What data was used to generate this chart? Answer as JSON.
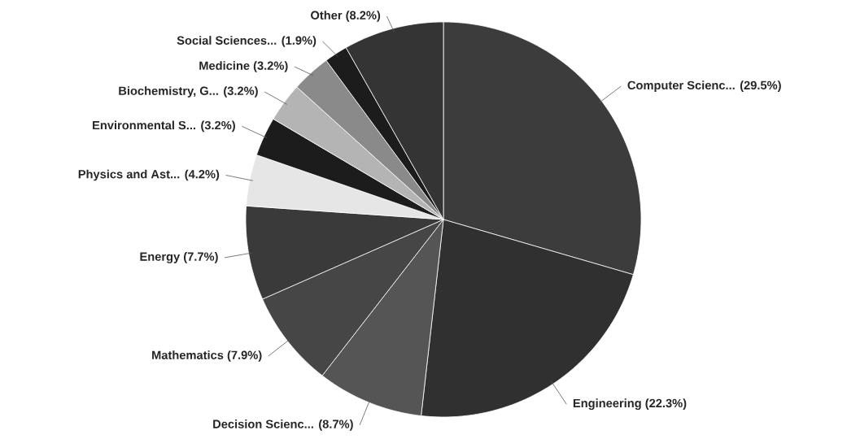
{
  "chart_data": {
    "type": "pie",
    "categories": [
      "Computer Scienc...",
      "Engineering",
      "Decision Scienc...",
      "Mathematics",
      "Energy",
      "Physics and Ast...",
      "Environmental S...",
      "Biochemistry, G...",
      "Medicine",
      "Social Sciences...",
      "Other"
    ],
    "values": [
      29.5,
      22.3,
      8.7,
      7.9,
      7.7,
      4.2,
      3.2,
      3.2,
      3.2,
      1.9,
      8.2
    ],
    "value_labels": [
      "(29.5%)",
      "(22.3%)",
      "(8.7%)",
      "(7.9%)",
      "(7.7%)",
      "(4.2%)",
      "(3.2%)",
      "(3.2%)",
      "(3.2%)",
      "(1.9%)",
      "(8.2%)"
    ],
    "colors": [
      "#3c3c3c",
      "#303030",
      "#555555",
      "#464646",
      "#3a3a3a",
      "#e6e6e6",
      "#1c1c1c",
      "#b4b4b4",
      "#8a8a8a",
      "#1c1c1c",
      "#343434"
    ]
  }
}
